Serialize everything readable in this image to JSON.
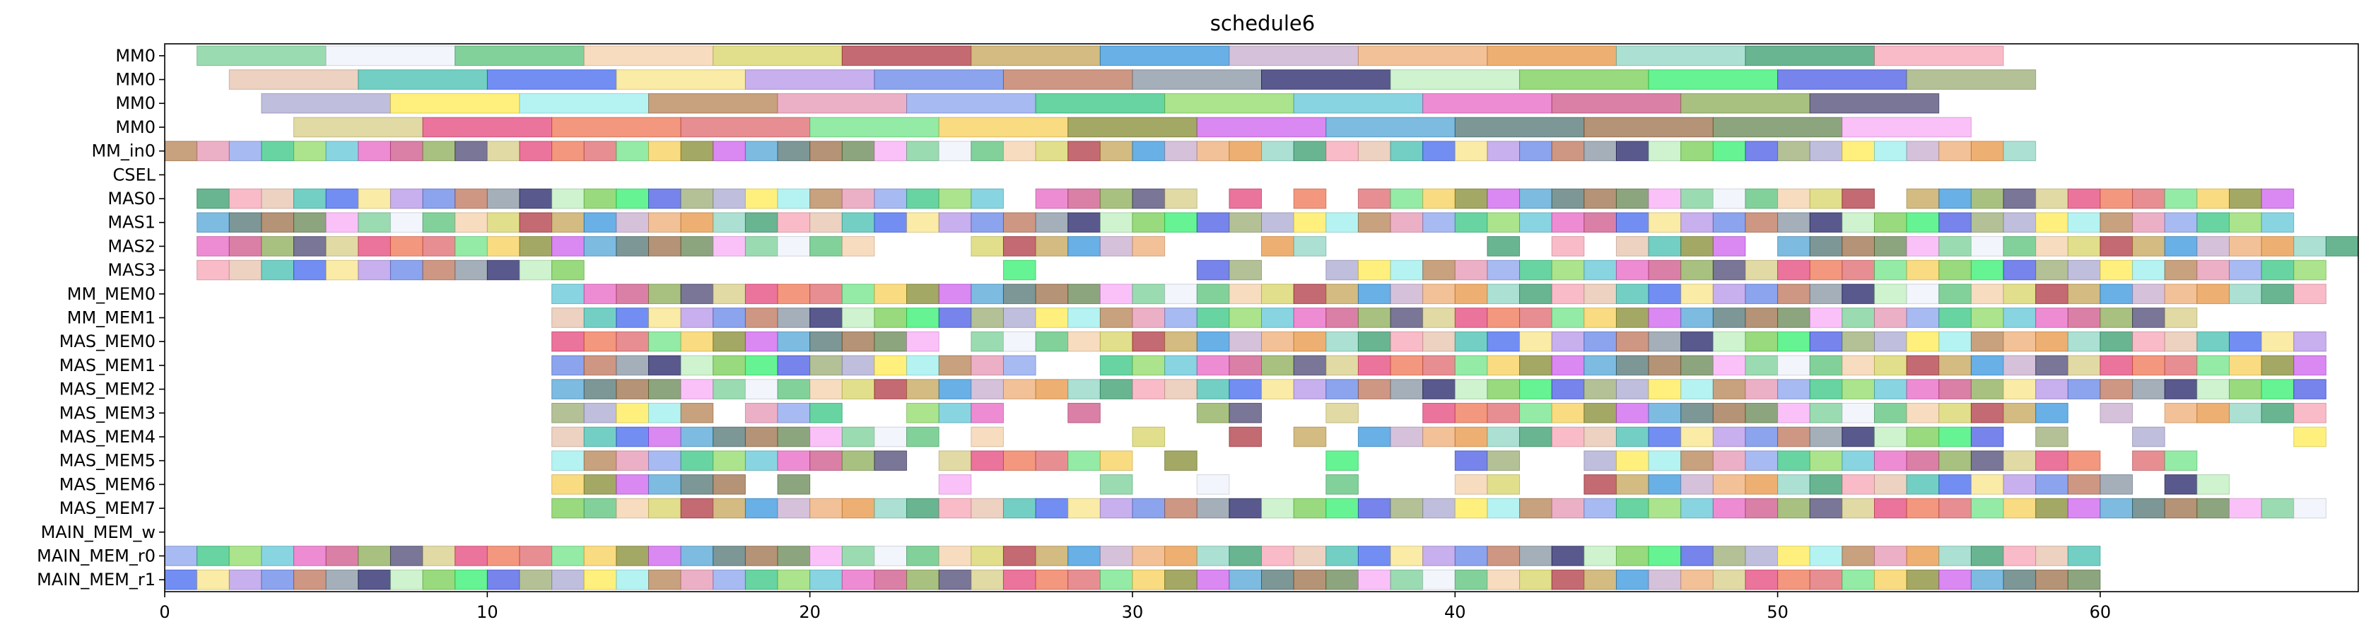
{
  "chart_data": {
    "type": "gantt",
    "title": "schedule6",
    "xlim": [
      0,
      68
    ],
    "x_ticks": [
      0,
      10,
      20,
      30,
      40,
      50,
      60
    ],
    "grid": false,
    "legend": "none",
    "rows": [
      "MM0",
      "MM0",
      "MM0",
      "MM0",
      "MM_in0",
      "CSEL",
      "MAS0",
      "MAS1",
      "MAS2",
      "MAS3",
      "MM_MEM0",
      "MM_MEM1",
      "MAS_MEM0",
      "MAS_MEM1",
      "MAS_MEM2",
      "MAS_MEM3",
      "MAS_MEM4",
      "MAS_MEM5",
      "MAS_MEM6",
      "MAS_MEM7",
      "MAIN_MEM_w",
      "MAIN_MEM_r0",
      "MAIN_MEM_r1"
    ],
    "task_duration": 1,
    "long_task_rows": {
      "MM0#0": {
        "duration": 4,
        "starts": [
          1,
          5,
          9,
          13,
          17,
          21,
          25,
          29,
          33,
          37,
          41,
          45,
          49,
          53
        ]
      },
      "MM0#1": {
        "duration": 4,
        "starts": [
          2,
          6,
          10,
          14,
          18,
          22,
          26,
          30,
          34,
          38,
          42,
          46,
          50,
          54
        ]
      },
      "MM0#2": {
        "duration": 4,
        "starts": [
          3,
          7,
          11,
          15,
          19,
          23,
          27,
          31,
          35,
          39,
          43,
          47,
          51
        ]
      },
      "MM0#3": {
        "duration": 4,
        "starts": [
          4,
          8,
          12,
          16,
          20,
          24,
          28,
          32,
          36,
          40,
          44,
          48,
          52
        ]
      }
    },
    "unit_task_rows": {
      "MM_in0": [
        0,
        1,
        2,
        3,
        4,
        5,
        6,
        7,
        8,
        9,
        10,
        11,
        12,
        13,
        14,
        15,
        16,
        17,
        18,
        19,
        20,
        21,
        22,
        23,
        24,
        25,
        26,
        27,
        28,
        29,
        30,
        31,
        32,
        33,
        34,
        35,
        36,
        37,
        38,
        39,
        40,
        41,
        42,
        43,
        44,
        45,
        46,
        47,
        48,
        49,
        50,
        51,
        52,
        53,
        54,
        55,
        56,
        57
      ],
      "CSEL": [],
      "MAS0": [
        1,
        2,
        3,
        4,
        5,
        6,
        7,
        8,
        9,
        10,
        11,
        12,
        13,
        14,
        15,
        16,
        17,
        18,
        19,
        20,
        21,
        22,
        23,
        24,
        25,
        27,
        28,
        29,
        30,
        31,
        33,
        35,
        37,
        38,
        39,
        40,
        41,
        42,
        43,
        44,
        45,
        46,
        47,
        48,
        49,
        50,
        51,
        52,
        54,
        55,
        56,
        57,
        58,
        59,
        60,
        61,
        62,
        63,
        64,
        65
      ],
      "MAS1": [
        1,
        2,
        3,
        4,
        5,
        6,
        7,
        8,
        9,
        10,
        11,
        12,
        13,
        14,
        15,
        16,
        17,
        18,
        19,
        20,
        21,
        22,
        23,
        24,
        25,
        26,
        27,
        28,
        29,
        30,
        31,
        32,
        33,
        34,
        35,
        36,
        37,
        38,
        39,
        40,
        41,
        42,
        43,
        44,
        45,
        46,
        47,
        48,
        49,
        50,
        51,
        52,
        53,
        54,
        55,
        56,
        57,
        58,
        59,
        60,
        61,
        62,
        63,
        64,
        65
      ],
      "MAS2": [
        1,
        2,
        3,
        4,
        5,
        6,
        7,
        8,
        9,
        10,
        11,
        12,
        13,
        14,
        15,
        16,
        17,
        18,
        19,
        20,
        21,
        25,
        26,
        27,
        28,
        29,
        30,
        34,
        35,
        41,
        43,
        45,
        46,
        47,
        48,
        50,
        51,
        52,
        53,
        54,
        55,
        56,
        57,
        58,
        59,
        60,
        61,
        62,
        63,
        64,
        65,
        66,
        67
      ],
      "MAS3": [
        1,
        2,
        3,
        4,
        5,
        6,
        7,
        8,
        9,
        10,
        11,
        12,
        26,
        32,
        33,
        36,
        37,
        38,
        39,
        40,
        41,
        42,
        43,
        44,
        45,
        46,
        47,
        48,
        49,
        50,
        51,
        52,
        53,
        54,
        55,
        56,
        57,
        58,
        59,
        60,
        61,
        62,
        63,
        64,
        65,
        66
      ],
      "MM_MEM0": [
        12,
        13,
        14,
        15,
        16,
        17,
        18,
        19,
        20,
        21,
        22,
        23,
        24,
        25,
        26,
        27,
        28,
        29,
        30,
        31,
        32,
        33,
        34,
        35,
        36,
        37,
        38,
        39,
        40,
        41,
        42,
        43,
        44,
        45,
        46,
        47,
        48,
        49,
        50,
        51,
        52,
        53,
        54,
        55,
        56,
        57,
        58,
        59,
        60,
        61,
        62,
        63,
        64,
        65,
        66
      ],
      "MM_MEM1": [
        12,
        13,
        14,
        15,
        16,
        17,
        18,
        19,
        20,
        21,
        22,
        23,
        24,
        25,
        26,
        27,
        28,
        29,
        30,
        31,
        32,
        33,
        34,
        35,
        36,
        37,
        38,
        39,
        40,
        41,
        42,
        43,
        44,
        45,
        46,
        47,
        48,
        49,
        50,
        51,
        52,
        53,
        54,
        55,
        56,
        57,
        58,
        59,
        60,
        61,
        62
      ],
      "MAS_MEM0": [
        12,
        13,
        14,
        15,
        16,
        17,
        18,
        19,
        20,
        21,
        22,
        23,
        25,
        26,
        27,
        28,
        29,
        30,
        31,
        32,
        33,
        34,
        35,
        36,
        37,
        38,
        39,
        40,
        41,
        42,
        43,
        44,
        45,
        46,
        47,
        48,
        49,
        50,
        51,
        52,
        53,
        54,
        55,
        56,
        57,
        58,
        59,
        60,
        61,
        62,
        63,
        64,
        65,
        66
      ],
      "MAS_MEM1": [
        12,
        13,
        14,
        15,
        16,
        17,
        18,
        19,
        20,
        21,
        22,
        23,
        24,
        25,
        26,
        29,
        30,
        31,
        32,
        33,
        34,
        35,
        36,
        37,
        38,
        39,
        40,
        41,
        42,
        43,
        44,
        45,
        46,
        47,
        48,
        49,
        50,
        51,
        52,
        53,
        54,
        55,
        56,
        57,
        58,
        59,
        60,
        61,
        62,
        63,
        64,
        65,
        66
      ],
      "MAS_MEM2": [
        12,
        13,
        14,
        15,
        16,
        17,
        18,
        19,
        20,
        21,
        22,
        23,
        24,
        25,
        26,
        27,
        28,
        29,
        30,
        31,
        32,
        33,
        34,
        35,
        36,
        37,
        38,
        39,
        40,
        41,
        42,
        43,
        44,
        45,
        46,
        47,
        48,
        49,
        50,
        51,
        52,
        53,
        54,
        55,
        56,
        57,
        58,
        59,
        60,
        61,
        62,
        63,
        64,
        65,
        66
      ],
      "MAS_MEM3": [
        12,
        13,
        14,
        15,
        16,
        18,
        19,
        20,
        23,
        24,
        25,
        28,
        32,
        33,
        36,
        39,
        40,
        41,
        42,
        43,
        44,
        45,
        46,
        47,
        48,
        49,
        50,
        51,
        52,
        53,
        54,
        55,
        56,
        57,
        58,
        60,
        62,
        63,
        64,
        65,
        66
      ],
      "MAS_MEM4": [
        12,
        13,
        14,
        15,
        16,
        17,
        18,
        19,
        20,
        21,
        22,
        23,
        25,
        30,
        33,
        35,
        37,
        38,
        39,
        40,
        41,
        42,
        43,
        44,
        45,
        46,
        47,
        48,
        49,
        50,
        51,
        52,
        53,
        54,
        55,
        56,
        58,
        61,
        66
      ],
      "MAS_MEM5": [
        12,
        13,
        14,
        15,
        16,
        17,
        18,
        19,
        20,
        21,
        22,
        24,
        25,
        26,
        27,
        28,
        29,
        31,
        36,
        40,
        41,
        44,
        45,
        46,
        47,
        48,
        49,
        50,
        51,
        52,
        53,
        54,
        55,
        56,
        57,
        58,
        59,
        61,
        62
      ],
      "MAS_MEM6": [
        12,
        13,
        14,
        15,
        16,
        17,
        19,
        24,
        29,
        32,
        36,
        40,
        41,
        44,
        45,
        46,
        47,
        48,
        49,
        50,
        51,
        52,
        53,
        54,
        55,
        56,
        57,
        58,
        59,
        60,
        62,
        63
      ],
      "MAS_MEM7": [
        12,
        13,
        14,
        15,
        16,
        17,
        18,
        19,
        20,
        21,
        22,
        23,
        24,
        25,
        26,
        27,
        28,
        29,
        30,
        31,
        32,
        33,
        34,
        35,
        36,
        37,
        38,
        39,
        40,
        41,
        42,
        43,
        44,
        45,
        46,
        47,
        48,
        49,
        50,
        51,
        52,
        53,
        54,
        55,
        56,
        57,
        58,
        59,
        60,
        61,
        62,
        63,
        64,
        65,
        66
      ],
      "MAIN_MEM_w": [],
      "MAIN_MEM_r0": [
        0,
        1,
        2,
        3,
        4,
        5,
        6,
        7,
        8,
        9,
        10,
        11,
        12,
        13,
        14,
        15,
        16,
        17,
        18,
        19,
        20,
        21,
        22,
        23,
        24,
        25,
        26,
        27,
        28,
        29,
        30,
        31,
        32,
        33,
        34,
        35,
        36,
        37,
        38,
        39,
        40,
        41,
        42,
        43,
        44,
        45,
        46,
        47,
        48,
        49,
        50,
        51,
        52,
        53,
        54,
        55,
        56,
        57,
        58,
        59
      ],
      "MAIN_MEM_r1": [
        0,
        1,
        2,
        3,
        4,
        5,
        6,
        7,
        8,
        9,
        10,
        11,
        12,
        13,
        14,
        15,
        16,
        17,
        18,
        19,
        20,
        21,
        22,
        23,
        24,
        25,
        26,
        27,
        28,
        29,
        30,
        31,
        32,
        33,
        34,
        35,
        36,
        37,
        38,
        39,
        40,
        41,
        42,
        43,
        44,
        45,
        46,
        47,
        48,
        49,
        50,
        51,
        52,
        53,
        54,
        55,
        56,
        57,
        58,
        59
      ]
    },
    "palette": [
      "#7fd19b",
      "#b8875a",
      "#c9b0cf",
      "#8fb05c",
      "#4c6ef0",
      "#8a8f3a",
      "#7bd058",
      "#eff2fb",
      "#e79ab6",
      "#f0b07a",
      "#55507a",
      "#f9e58d",
      "#d066ee",
      "#3bef75",
      "#5fc47f",
      "#8fa6ee",
      "#e89a4a",
      "#d9cf8a",
      "#b79ae8",
      "#58a8d8",
      "#4f62e6",
      "#f5d2ae",
      "#3ec887",
      "#94d7c6",
      "#e64d80",
      "#6c8ae8",
      "#587a7a",
      "#9fb07a",
      "#d9d66a",
      "#93dc6c",
      "#3fa073",
      "#ef7a5a",
      "#c07a60",
      "#a07550",
      "#aeacd4",
      "#b3404a",
      "#68c8d8",
      "#f7a8b8",
      "#e06e74",
      "#8a98a6",
      "#6d8c5a",
      "#ffec5a",
      "#c6a85e",
      "#e96cc7",
      "#e8c4b0",
      "#74e68d",
      "#2a2a6e",
      "#f9b0f7",
      "#a0f0f0",
      "#3e9adf",
      "#d05c8e",
      "#4bc2b4",
      "#f7d15f",
      "#c0f0c0"
    ]
  }
}
